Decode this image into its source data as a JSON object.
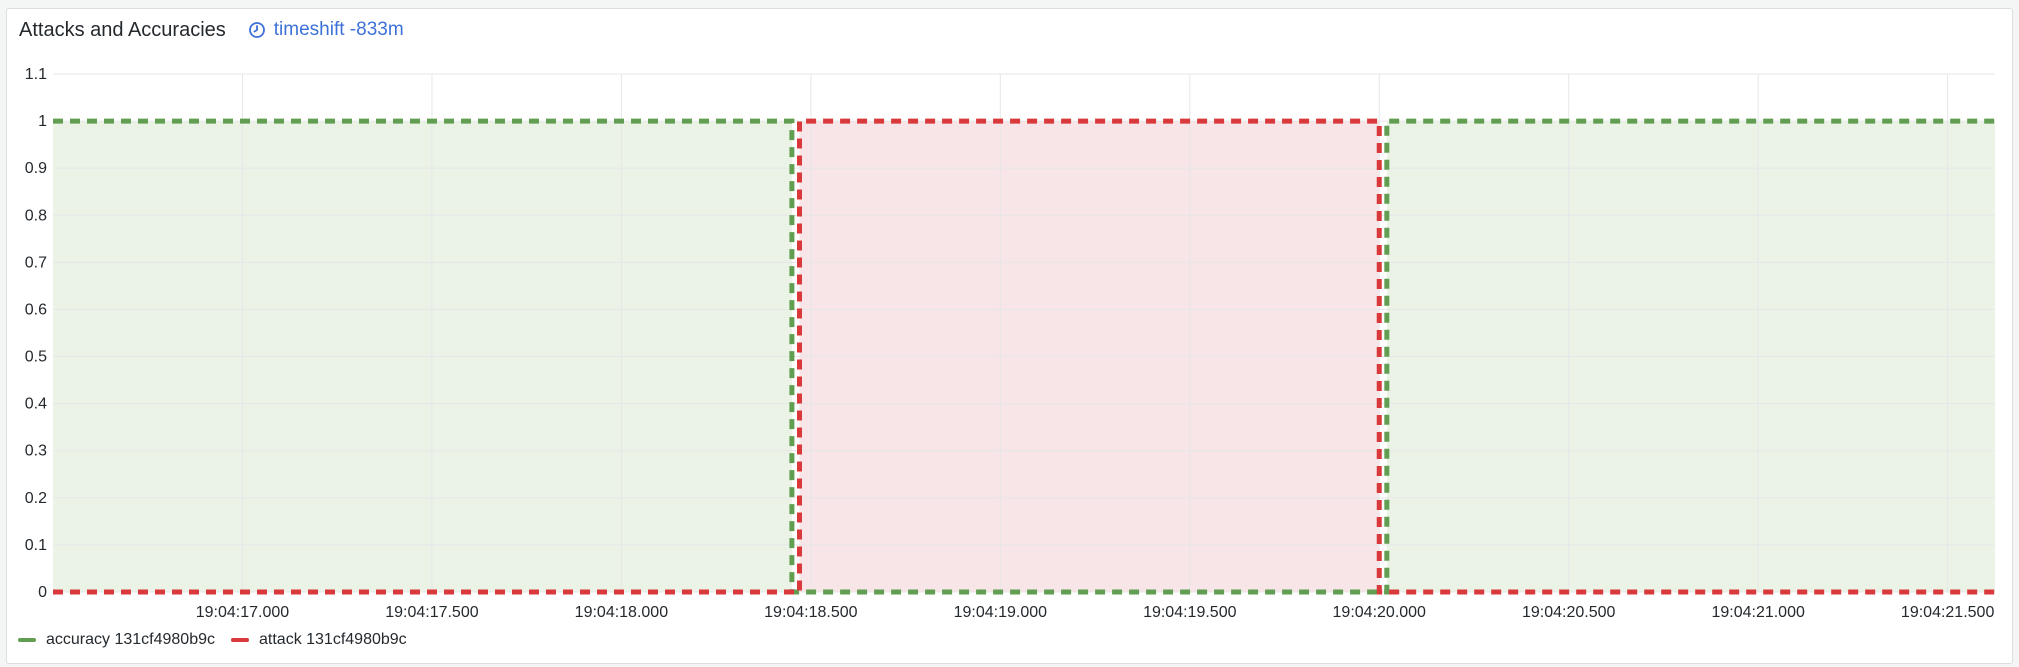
{
  "panel": {
    "title": "Attacks and Accuracies",
    "timeshift_label": "timeshift -833m"
  },
  "chart_data": {
    "type": "line",
    "x_axis": {
      "ticks": [
        "19:04:17.000",
        "19:04:17.500",
        "19:04:18.000",
        "19:04:18.500",
        "19:04:19.000",
        "19:04:19.500",
        "19:04:20.000",
        "19:04:20.500",
        "19:04:21.000",
        "19:04:21.500"
      ]
    },
    "y_axis": {
      "ticks": [
        "0",
        "0.1",
        "0.2",
        "0.3",
        "0.4",
        "0.5",
        "0.6",
        "0.7",
        "0.8",
        "0.9",
        "1",
        "1.1"
      ],
      "ylim": [
        0,
        1.1
      ]
    },
    "x_range": [
      "19:04:16.500",
      "19:04:21.625"
    ],
    "grid": true,
    "legend_position": "bottom-left",
    "series": [
      {
        "name": "accuracy 131cf4980b9c",
        "color": "#629e51",
        "fill_color": "#ebf3e7",
        "points": [
          {
            "x": "19:04:16.500",
            "y": 1
          },
          {
            "x": "19:04:18.450",
            "y": 1
          },
          {
            "x": "19:04:18.450",
            "y": 0
          },
          {
            "x": "19:04:20.020",
            "y": 0
          },
          {
            "x": "19:04:20.020",
            "y": 1
          },
          {
            "x": "19:04:21.625",
            "y": 1
          }
        ]
      },
      {
        "name": "attack 131cf4980b9c",
        "color": "#d9393b",
        "fill_color": "#f7e5e7",
        "points": [
          {
            "x": "19:04:16.500",
            "y": 0
          },
          {
            "x": "19:04:18.470",
            "y": 0
          },
          {
            "x": "19:04:18.470",
            "y": 1
          },
          {
            "x": "19:04:20.000",
            "y": 1
          },
          {
            "x": "19:04:20.000",
            "y": 0
          },
          {
            "x": "19:04:21.625",
            "y": 0
          }
        ]
      }
    ]
  },
  "legend": {
    "items": [
      {
        "label": "accuracy 131cf4980b9c",
        "color": "#629e51"
      },
      {
        "label": "attack 131cf4980b9c",
        "color": "#d9393b"
      }
    ]
  }
}
